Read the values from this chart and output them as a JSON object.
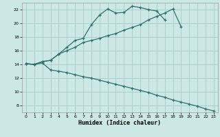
{
  "xlabel": "Humidex (Indice chaleur)",
  "bg_color": "#cce8e4",
  "grid_color": "#aacfcb",
  "line_color": "#2a7068",
  "line1_x": [
    0,
    1,
    2,
    3,
    4,
    5,
    6,
    7,
    8,
    9,
    10,
    11,
    12,
    13,
    14,
    15,
    16,
    17
  ],
  "line1_y": [
    14.1,
    14.0,
    14.4,
    14.6,
    15.5,
    16.5,
    17.5,
    17.8,
    19.8,
    21.2,
    22.1,
    21.5,
    21.6,
    22.5,
    22.3,
    22.0,
    21.8,
    20.5
  ],
  "line2_x": [
    0,
    1,
    2,
    3,
    4,
    5,
    6,
    7,
    8,
    9,
    10,
    11,
    12,
    13,
    14,
    15,
    16,
    17,
    18,
    19
  ],
  "line2_y": [
    14.1,
    14.0,
    14.4,
    14.6,
    15.5,
    16.0,
    16.5,
    17.2,
    17.5,
    17.8,
    18.2,
    18.5,
    19.0,
    19.4,
    19.8,
    20.5,
    21.0,
    21.5,
    22.1,
    19.5
  ],
  "line3_x": [
    0,
    1,
    2,
    3,
    4,
    5,
    6,
    7,
    8,
    9,
    10,
    11,
    12,
    13,
    14,
    15,
    16,
    17,
    18,
    19,
    20,
    21,
    22,
    23
  ],
  "line3_y": [
    14.1,
    14.0,
    14.2,
    13.2,
    13.0,
    12.8,
    12.5,
    12.2,
    12.0,
    11.7,
    11.4,
    11.1,
    10.8,
    10.5,
    10.2,
    9.9,
    9.5,
    9.2,
    8.8,
    8.5,
    8.2,
    7.9,
    7.5,
    7.2
  ],
  "xlim": [
    -0.5,
    23.5
  ],
  "ylim": [
    7,
    23
  ],
  "xticks": [
    0,
    1,
    2,
    3,
    4,
    5,
    6,
    7,
    8,
    9,
    10,
    11,
    12,
    13,
    14,
    15,
    16,
    17,
    18,
    19,
    20,
    21,
    22,
    23
  ],
  "yticks": [
    8,
    10,
    12,
    14,
    16,
    18,
    20,
    22
  ]
}
